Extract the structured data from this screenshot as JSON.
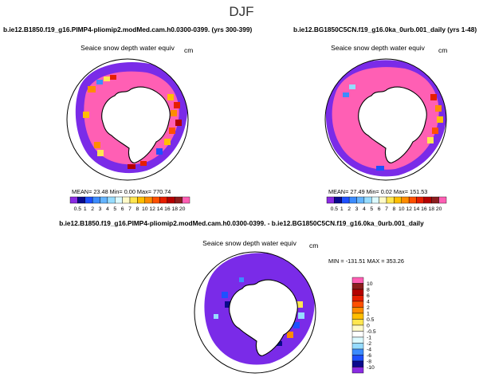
{
  "figure": {
    "title": "DJF",
    "panel_left": {
      "case": "b.ie12.B1850.f19_g16.PIMP4-pliomip2.modMed.cam.h0.0300-0399. (yrs 300-399)",
      "variable": "Seaice snow depth water equiv",
      "units": "cm",
      "stats": "MEAN=   23.48    Min=     0.00    Max=  770.74"
    },
    "panel_right": {
      "case": "b.ie12.BG1850C5CN.f19_g16.0ka_0urb.001_daily (yrs 1-48)",
      "variable": "Seaice snow depth water equiv",
      "units": "cm",
      "stats": "MEAN=   27.49    Min=     0.02    Max=  151.53"
    },
    "panel_diff": {
      "case": "b.ie12.B1850.f19_g16.PIMP4-pliomip2.modMed.cam.h0.0300-0399. - b.ie12.BG1850C5CN.f19_g16.0ka_0urb.001_daily",
      "variable": "Seaice snow depth water equiv",
      "units": "cm",
      "stats": "MIN = -131.51  MAX = 353.26"
    }
  },
  "chart_data": [
    {
      "type": "heatmap",
      "projection": "south-polar-stereographic",
      "title": "Seaice snow depth water equiv",
      "units": "cm",
      "colorbar": {
        "orientation": "horizontal",
        "ticks": [
          "0.5",
          "1",
          "2",
          "3",
          "4",
          "5",
          "6",
          "7",
          "8",
          "10",
          "12",
          "14",
          "16",
          "18",
          "20"
        ],
        "colors": [
          "#8a2be2",
          "#0a0a8c",
          "#1e50ff",
          "#3c8cff",
          "#64b4ff",
          "#96dcff",
          "#dcfaff",
          "#fffac8",
          "#ffe650",
          "#ffbe00",
          "#ff8c00",
          "#ff5000",
          "#e61e00",
          "#b40000",
          "#8c1e1e",
          "#ff5fb4"
        ]
      },
      "mean": 23.48,
      "min": 0.0,
      "max": 770.74
    },
    {
      "type": "heatmap",
      "projection": "south-polar-stereographic",
      "title": "Seaice snow depth water equiv",
      "units": "cm",
      "colorbar": {
        "orientation": "horizontal",
        "ticks": [
          "0.5",
          "1",
          "2",
          "3",
          "4",
          "5",
          "6",
          "7",
          "8",
          "10",
          "12",
          "14",
          "16",
          "18",
          "20"
        ],
        "colors": [
          "#8a2be2",
          "#0a0a8c",
          "#1e50ff",
          "#3c8cff",
          "#64b4ff",
          "#96dcff",
          "#dcfaff",
          "#fffac8",
          "#ffe650",
          "#ffbe00",
          "#ff8c00",
          "#ff5000",
          "#e61e00",
          "#b40000",
          "#8c1e1e",
          "#ff5fb4"
        ]
      },
      "mean": 27.49,
      "min": 0.02,
      "max": 151.53
    },
    {
      "type": "heatmap",
      "projection": "south-polar-stereographic",
      "title": "Seaice snow depth water equiv",
      "units": "cm",
      "colorbar": {
        "orientation": "vertical",
        "ticks": [
          "10",
          "8",
          "6",
          "4",
          "2",
          "1",
          "0.5",
          "0",
          "-0.5",
          "-1",
          "-2",
          "-4",
          "-6",
          "-8",
          "-10"
        ],
        "colors": [
          "#ff5fb4",
          "#8c1e1e",
          "#b40000",
          "#e61e00",
          "#ff5000",
          "#ff8c00",
          "#ffbe00",
          "#ffe650",
          "#fffac8",
          "#ffffff",
          "#dcfaff",
          "#96dcff",
          "#3c8cff",
          "#1e50ff",
          "#0a0a8c",
          "#8a2be2"
        ]
      },
      "min": -131.51,
      "max": 353.26
    }
  ]
}
